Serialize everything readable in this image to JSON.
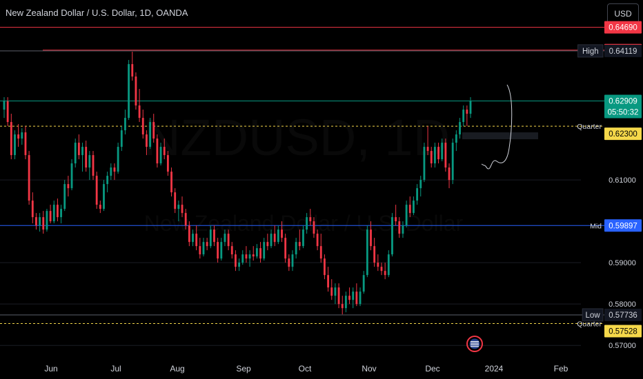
{
  "header": {
    "title": "New Zealand Dollar / U.S. Dollar, 1D, OANDA",
    "currency_button": "USD"
  },
  "watermark": {
    "symbol": "NZDUSD, 1D",
    "name": "New Zealand Dollar / U.S. Dollar"
  },
  "colors": {
    "background": "#000000",
    "up": "#089981",
    "down": "#f23645",
    "resistance": "#f23645",
    "mid": "#2962ff",
    "quarter": "#f5d84a",
    "current": "#089981"
  },
  "chart_data": {
    "type": "candlestick",
    "title": "New Zealand Dollar / U.S. Dollar, 1D, OANDA",
    "ylim": [
      0.5672,
      0.6535
    ],
    "x_tick_labels": [
      "Jun",
      "Jul",
      "Aug",
      "Sep",
      "Oct",
      "Nov",
      "Dec",
      "2024",
      "Feb"
    ],
    "y_tick_labels": [
      "0.61000",
      "0.59000",
      "0.58000",
      "0.57000"
    ],
    "ohlc_approx": [
      [
        0.627,
        0.63,
        0.625,
        0.629
      ],
      [
        0.629,
        0.63,
        0.623,
        0.624
      ],
      [
        0.624,
        0.626,
        0.615,
        0.616
      ],
      [
        0.616,
        0.622,
        0.615,
        0.621
      ],
      [
        0.621,
        0.6235,
        0.618,
        0.62
      ],
      [
        0.62,
        0.6225,
        0.6185,
        0.6215
      ],
      [
        0.6215,
        0.623,
        0.615,
        0.616
      ],
      [
        0.616,
        0.617,
        0.604,
        0.605
      ],
      [
        0.605,
        0.607,
        0.5995,
        0.601
      ],
      [
        0.601,
        0.602,
        0.598,
        0.599
      ],
      [
        0.599,
        0.602,
        0.5975,
        0.601
      ],
      [
        0.601,
        0.6025,
        0.597,
        0.598
      ],
      [
        0.598,
        0.603,
        0.5975,
        0.6025
      ],
      [
        0.6025,
        0.604,
        0.5995,
        0.6
      ],
      [
        0.6,
        0.605,
        0.5995,
        0.604
      ],
      [
        0.604,
        0.6055,
        0.6,
        0.601
      ],
      [
        0.601,
        0.604,
        0.5995,
        0.603
      ],
      [
        0.603,
        0.61,
        0.6025,
        0.609
      ],
      [
        0.609,
        0.611,
        0.606,
        0.608
      ],
      [
        0.608,
        0.615,
        0.6075,
        0.614
      ],
      [
        0.614,
        0.62,
        0.613,
        0.619
      ],
      [
        0.619,
        0.621,
        0.615,
        0.616
      ],
      [
        0.616,
        0.619,
        0.612,
        0.618
      ],
      [
        0.618,
        0.6195,
        0.612,
        0.613
      ],
      [
        0.613,
        0.617,
        0.61,
        0.616
      ],
      [
        0.616,
        0.617,
        0.61,
        0.611
      ],
      [
        0.611,
        0.612,
        0.603,
        0.604
      ],
      [
        0.604,
        0.605,
        0.602,
        0.603
      ],
      [
        0.603,
        0.61,
        0.6025,
        0.609
      ],
      [
        0.609,
        0.612,
        0.607,
        0.611
      ],
      [
        0.611,
        0.614,
        0.61,
        0.613
      ],
      [
        0.613,
        0.614,
        0.61,
        0.612
      ],
      [
        0.612,
        0.619,
        0.6115,
        0.618
      ],
      [
        0.618,
        0.623,
        0.617,
        0.622
      ],
      [
        0.622,
        0.627,
        0.621,
        0.625
      ],
      [
        0.625,
        0.639,
        0.6245,
        0.638
      ],
      [
        0.638,
        0.641,
        0.634,
        0.635
      ],
      [
        0.635,
        0.636,
        0.627,
        0.628
      ],
      [
        0.628,
        0.632,
        0.624,
        0.625
      ],
      [
        0.625,
        0.627,
        0.62,
        0.621
      ],
      [
        0.621,
        0.622,
        0.616,
        0.618
      ],
      [
        0.618,
        0.625,
        0.6175,
        0.624
      ],
      [
        0.624,
        0.626,
        0.619,
        0.62
      ],
      [
        0.62,
        0.621,
        0.613,
        0.614
      ],
      [
        0.614,
        0.619,
        0.6135,
        0.618
      ],
      [
        0.618,
        0.62,
        0.615,
        0.616
      ],
      [
        0.616,
        0.617,
        0.611,
        0.612
      ],
      [
        0.612,
        0.613,
        0.606,
        0.607
      ],
      [
        0.607,
        0.608,
        0.602,
        0.603
      ],
      [
        0.603,
        0.605,
        0.6,
        0.604
      ],
      [
        0.604,
        0.606,
        0.601,
        0.602
      ],
      [
        0.602,
        0.603,
        0.598,
        0.599
      ],
      [
        0.599,
        0.6,
        0.594,
        0.595
      ],
      [
        0.595,
        0.598,
        0.594,
        0.597
      ],
      [
        0.597,
        0.599,
        0.593,
        0.594
      ],
      [
        0.594,
        0.596,
        0.591,
        0.592
      ],
      [
        0.592,
        0.596,
        0.5915,
        0.595
      ],
      [
        0.595,
        0.596,
        0.593,
        0.594
      ],
      [
        0.594,
        0.599,
        0.5935,
        0.598
      ],
      [
        0.598,
        0.599,
        0.594,
        0.595
      ],
      [
        0.595,
        0.596,
        0.59,
        0.591
      ],
      [
        0.591,
        0.596,
        0.5905,
        0.595
      ],
      [
        0.595,
        0.598,
        0.594,
        0.597
      ],
      [
        0.597,
        0.598,
        0.593,
        0.594
      ],
      [
        0.594,
        0.595,
        0.591,
        0.592
      ],
      [
        0.592,
        0.593,
        0.588,
        0.589
      ],
      [
        0.589,
        0.591,
        0.588,
        0.59
      ],
      [
        0.59,
        0.593,
        0.5895,
        0.592
      ],
      [
        0.592,
        0.594,
        0.59,
        0.591
      ],
      [
        0.591,
        0.593,
        0.589,
        0.592
      ],
      [
        0.592,
        0.594,
        0.5905,
        0.5915
      ],
      [
        0.5915,
        0.5945,
        0.591,
        0.5935
      ],
      [
        0.5935,
        0.595,
        0.59,
        0.591
      ],
      [
        0.591,
        0.596,
        0.5905,
        0.595
      ],
      [
        0.595,
        0.597,
        0.593,
        0.594
      ],
      [
        0.594,
        0.598,
        0.5935,
        0.597
      ],
      [
        0.597,
        0.599,
        0.594,
        0.595
      ],
      [
        0.595,
        0.599,
        0.5945,
        0.598
      ],
      [
        0.598,
        0.6,
        0.595,
        0.596
      ],
      [
        0.596,
        0.597,
        0.59,
        0.591
      ],
      [
        0.591,
        0.592,
        0.588,
        0.589
      ],
      [
        0.589,
        0.593,
        0.588,
        0.592
      ],
      [
        0.592,
        0.596,
        0.591,
        0.595
      ],
      [
        0.595,
        0.598,
        0.593,
        0.594
      ],
      [
        0.594,
        0.599,
        0.5935,
        0.598
      ],
      [
        0.598,
        0.602,
        0.597,
        0.601
      ],
      [
        0.601,
        0.603,
        0.599,
        0.6
      ],
      [
        0.6,
        0.601,
        0.596,
        0.597
      ],
      [
        0.597,
        0.598,
        0.593,
        0.594
      ],
      [
        0.594,
        0.597,
        0.59,
        0.591
      ],
      [
        0.591,
        0.592,
        0.586,
        0.587
      ],
      [
        0.587,
        0.589,
        0.583,
        0.584
      ],
      [
        0.584,
        0.586,
        0.581,
        0.582
      ],
      [
        0.582,
        0.585,
        0.58,
        0.584
      ],
      [
        0.584,
        0.585,
        0.579,
        0.58
      ],
      [
        0.58,
        0.582,
        0.5775,
        0.579
      ],
      [
        0.579,
        0.583,
        0.578,
        0.582
      ],
      [
        0.582,
        0.584,
        0.58,
        0.581
      ],
      [
        0.581,
        0.584,
        0.579,
        0.583
      ],
      [
        0.583,
        0.585,
        0.5795,
        0.58
      ],
      [
        0.58,
        0.584,
        0.5795,
        0.583
      ],
      [
        0.583,
        0.588,
        0.5825,
        0.587
      ],
      [
        0.587,
        0.599,
        0.5865,
        0.598
      ],
      [
        0.598,
        0.6,
        0.593,
        0.594
      ],
      [
        0.594,
        0.596,
        0.589,
        0.59
      ],
      [
        0.59,
        0.592,
        0.588,
        0.589
      ],
      [
        0.589,
        0.59,
        0.587,
        0.588
      ],
      [
        0.588,
        0.59,
        0.586,
        0.587
      ],
      [
        0.587,
        0.593,
        0.5865,
        0.592
      ],
      [
        0.592,
        0.602,
        0.5915,
        0.601
      ],
      [
        0.601,
        0.604,
        0.599,
        0.6
      ],
      [
        0.6,
        0.601,
        0.596,
        0.597
      ],
      [
        0.597,
        0.6,
        0.596,
        0.599
      ],
      [
        0.599,
        0.605,
        0.5985,
        0.604
      ],
      [
        0.604,
        0.606,
        0.601,
        0.602
      ],
      [
        0.602,
        0.606,
        0.6015,
        0.605
      ],
      [
        0.605,
        0.609,
        0.604,
        0.608
      ],
      [
        0.608,
        0.611,
        0.606,
        0.61
      ],
      [
        0.61,
        0.619,
        0.6095,
        0.618
      ],
      [
        0.618,
        0.623,
        0.616,
        0.617
      ],
      [
        0.617,
        0.618,
        0.613,
        0.614
      ],
      [
        0.614,
        0.619,
        0.613,
        0.618
      ],
      [
        0.618,
        0.619,
        0.614,
        0.615
      ],
      [
        0.615,
        0.62,
        0.6145,
        0.619
      ],
      [
        0.619,
        0.62,
        0.612,
        0.613
      ],
      [
        0.613,
        0.614,
        0.608,
        0.61
      ],
      [
        0.61,
        0.62,
        0.609,
        0.619
      ],
      [
        0.619,
        0.622,
        0.617,
        0.621
      ],
      [
        0.621,
        0.625,
        0.62,
        0.624
      ],
      [
        0.624,
        0.628,
        0.623,
        0.627
      ],
      [
        0.627,
        0.628,
        0.623,
        0.626
      ],
      [
        0.626,
        0.63,
        0.625,
        0.629
      ]
    ],
    "levels": [
      {
        "name": "resistance-upper",
        "value": 0.6469,
        "label": "0.64690",
        "color": "#f23645"
      },
      {
        "name": "resistance-lower",
        "value": 0.64138,
        "label": "0.64138",
        "color": "#f23645"
      },
      {
        "name": "high",
        "value": 0.64119,
        "label": "0.64119",
        "tag": "High"
      },
      {
        "name": "current",
        "value": 0.62909,
        "label": "0.62909",
        "countdown": "05:50:32"
      },
      {
        "name": "quarter-upper",
        "value": 0.623,
        "label": "0.62300",
        "tag": "Quarter"
      },
      {
        "name": "mid",
        "value": 0.59897,
        "label": "0.59897",
        "tag": "Mid"
      },
      {
        "name": "low",
        "value": 0.57736,
        "label": "0.57736",
        "tag": "Low"
      },
      {
        "name": "quarter-lower",
        "value": 0.57528,
        "label": "0.57528",
        "tag": "Quarter"
      }
    ],
    "projection_note": "hand-drawn forecast path"
  }
}
